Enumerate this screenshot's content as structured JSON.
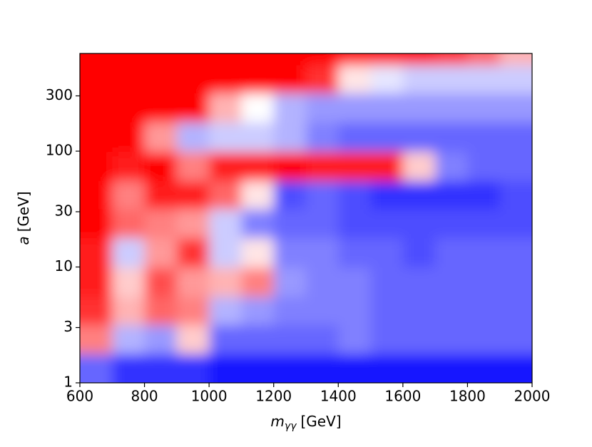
{
  "chart_data": {
    "type": "heatmap",
    "xlabel": {
      "symbol": "m",
      "subscript": "γγ",
      "unit": "[GeV]"
    },
    "ylabel": {
      "symbol": "a",
      "unit": "[GeV]"
    },
    "x_bins": [
      600,
      700,
      800,
      900,
      1000,
      1100,
      1200,
      1300,
      1400,
      1500,
      1600,
      1700,
      1800,
      1900,
      2000
    ],
    "y_bins": [
      1,
      1.8,
      3.2,
      5.6,
      10,
      18,
      32,
      56,
      100,
      180,
      320,
      560,
      697
    ],
    "z": [
      [
        -0.6,
        -0.8,
        -0.8,
        -0.8,
        -0.9,
        -0.9,
        -0.9,
        -0.9,
        -0.9,
        -0.9,
        -0.9,
        -0.9,
        -0.9,
        -0.9
      ],
      [
        0.5,
        -0.3,
        -0.4,
        0.2,
        -0.6,
        -0.6,
        -0.6,
        -0.6,
        -0.5,
        -0.6,
        -0.6,
        -0.6,
        -0.6,
        -0.6
      ],
      [
        0.8,
        0.3,
        0.6,
        0.5,
        -0.3,
        -0.4,
        -0.5,
        -0.5,
        -0.5,
        -0.6,
        -0.6,
        -0.6,
        -0.6,
        -0.6
      ],
      [
        0.9,
        0.2,
        0.7,
        0.4,
        0.3,
        0.5,
        -0.4,
        -0.5,
        -0.5,
        -0.6,
        -0.6,
        -0.6,
        -0.6,
        -0.6
      ],
      [
        0.9,
        -0.2,
        0.4,
        0.8,
        -0.2,
        0.1,
        -0.5,
        -0.5,
        -0.6,
        -0.6,
        -0.7,
        -0.6,
        -0.6,
        -0.6
      ],
      [
        1,
        0.6,
        0.5,
        0.4,
        -0.2,
        -0.5,
        -0.6,
        -0.6,
        -0.7,
        -0.7,
        -0.7,
        -0.7,
        -0.7,
        -0.7
      ],
      [
        1,
        0.5,
        0.9,
        0.9,
        0.6,
        0.1,
        -0.7,
        -0.6,
        -0.7,
        -0.8,
        -0.8,
        -0.8,
        -0.8,
        -0.7
      ],
      [
        1,
        0.9,
        1,
        0.5,
        0.9,
        0.9,
        1,
        0.9,
        0.9,
        0.9,
        0.2,
        -0.5,
        -0.6,
        -0.6
      ],
      [
        1,
        1,
        0.4,
        -0.3,
        -0.2,
        -0.2,
        -0.3,
        -0.5,
        -0.6,
        -0.6,
        -0.6,
        -0.6,
        -0.6,
        -0.6
      ],
      [
        1,
        1,
        1,
        1,
        0.3,
        0,
        -0.3,
        -0.4,
        -0.4,
        -0.4,
        -0.4,
        -0.4,
        -0.4,
        -0.4
      ],
      [
        1,
        1,
        1,
        1,
        1,
        1,
        1,
        0.8,
        0.1,
        -0.1,
        -0.2,
        -0.2,
        -0.2,
        -0.2
      ],
      [
        1,
        1,
        1,
        1,
        1,
        1,
        1,
        1,
        1,
        1,
        1,
        0.8,
        0.6,
        0.3
      ]
    ],
    "zlim": [
      -1,
      1
    ],
    "colormap": [
      "#0000ff",
      "#ffffff",
      "#ff0000"
    ],
    "xlim": [
      600,
      2000
    ],
    "ylim": [
      1,
      697
    ],
    "yscale": "log",
    "xticks": [
      600,
      800,
      1000,
      1200,
      1400,
      1600,
      1800,
      2000
    ],
    "yticks": [
      1,
      3,
      10,
      30,
      100,
      300
    ]
  }
}
